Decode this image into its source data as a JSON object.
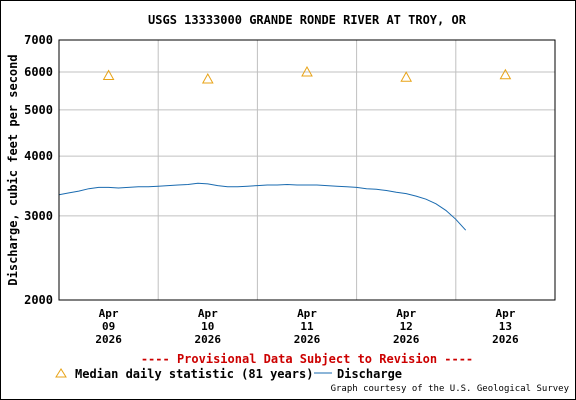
{
  "chart_data": {
    "type": "line",
    "title": "USGS 13333000 GRANDE RONDE RIVER AT TROY, OR",
    "ylabel": "Discharge, cubic feet per second",
    "xlabel": "",
    "y_scale": "log",
    "ylim": [
      2000,
      7000
    ],
    "y_ticks": [
      2000,
      3000,
      4000,
      5000,
      6000,
      7000
    ],
    "y_tick_labels": [
      "2000",
      "3000",
      "4000",
      "5000",
      "6000",
      "7000"
    ],
    "x_tick_labels": [
      [
        "Apr",
        "09",
        "2026"
      ],
      [
        "Apr",
        "10",
        "2026"
      ],
      [
        "Apr",
        "11",
        "2026"
      ],
      [
        "Apr",
        "12",
        "2026"
      ],
      [
        "Apr",
        "13",
        "2026"
      ]
    ],
    "xlim_days": [
      -0.5,
      4.5
    ],
    "grid": true,
    "provisional_note": "---- Provisional Data Subject to Revision ----",
    "credit": "Graph courtesy of the U.S. Geological Survey",
    "series": [
      {
        "name": "Median daily statistic (81 years)",
        "marker": "triangle",
        "color": "#e8a317",
        "x": [
          0,
          1,
          2,
          3,
          4
        ],
        "values": [
          5900,
          5800,
          6000,
          5850,
          5920
        ]
      },
      {
        "name": "Discharge",
        "marker": "line",
        "color": "#1a6bb0",
        "x": [
          -0.5,
          -0.4,
          -0.3,
          -0.2,
          -0.1,
          0.0,
          0.1,
          0.2,
          0.3,
          0.4,
          0.5,
          0.6,
          0.7,
          0.8,
          0.9,
          1.0,
          1.1,
          1.2,
          1.3,
          1.4,
          1.5,
          1.6,
          1.7,
          1.8,
          1.9,
          2.0,
          2.1,
          2.2,
          2.3,
          2.4,
          2.5,
          2.6,
          2.7,
          2.8,
          2.9,
          3.0,
          3.1,
          3.2,
          3.3,
          3.4,
          3.5,
          3.6
        ],
        "values": [
          3320,
          3350,
          3380,
          3420,
          3440,
          3440,
          3430,
          3440,
          3450,
          3450,
          3460,
          3470,
          3480,
          3490,
          3510,
          3500,
          3470,
          3450,
          3450,
          3460,
          3470,
          3480,
          3480,
          3490,
          3480,
          3480,
          3480,
          3470,
          3460,
          3450,
          3440,
          3420,
          3410,
          3390,
          3360,
          3340,
          3300,
          3250,
          3180,
          3080,
          2950,
          2800
        ]
      }
    ]
  }
}
